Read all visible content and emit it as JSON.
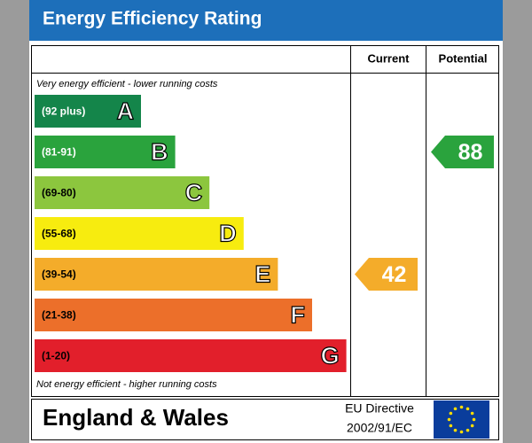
{
  "header": {
    "title": "Energy Efficiency Rating"
  },
  "columns": {
    "current": "Current",
    "potential": "Potential"
  },
  "top_note": "Very energy efficient - lower running costs",
  "bottom_note": "Not energy efficient - higher running costs",
  "bands": [
    {
      "range": "(92 plus)",
      "letter": "A",
      "color": "#14854a",
      "label_color": "#ffffff"
    },
    {
      "range": "(81-91)",
      "letter": "B",
      "color": "#2aa33d",
      "label_color": "#ffffff"
    },
    {
      "range": "(69-80)",
      "letter": "C",
      "color": "#8cc63e",
      "label_color": "#000000"
    },
    {
      "range": "(55-68)",
      "letter": "D",
      "color": "#f7ec0f",
      "label_color": "#000000"
    },
    {
      "range": "(39-54)",
      "letter": "E",
      "color": "#f4ac2a",
      "label_color": "#000000"
    },
    {
      "range": "(21-38)",
      "letter": "F",
      "color": "#ec6f2a",
      "label_color": "#000000"
    },
    {
      "range": "(1-20)",
      "letter": "G",
      "color": "#e21f2b",
      "label_color": "#000000"
    }
  ],
  "current": {
    "value": 42
  },
  "potential": {
    "value": 88
  },
  "footer": {
    "region": "England & Wales",
    "directive_1": "EU Directive",
    "directive_2": "2002/91/EC"
  }
}
